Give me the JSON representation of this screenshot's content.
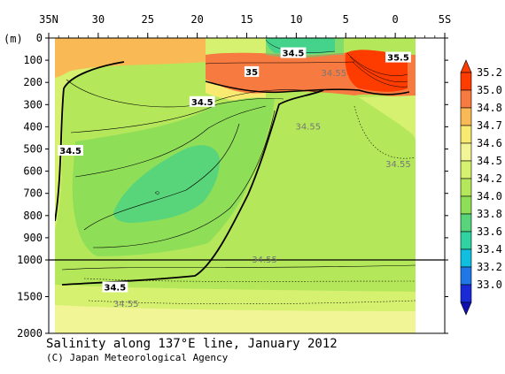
{
  "chart_data": {
    "type": "contour",
    "title": "Salinity along 137°E line, January 2012",
    "credit": "(C) Japan Meteorological Agency",
    "y_unit": "(m)",
    "x_axis": {
      "range": [
        35,
        -5
      ],
      "tick_labels": [
        {
          "value": 35,
          "label": "35N"
        },
        {
          "value": 30,
          "label": "30"
        },
        {
          "value": 25,
          "label": "25"
        },
        {
          "value": 20,
          "label": "20"
        },
        {
          "value": 15,
          "label": "15"
        },
        {
          "value": 10,
          "label": "10"
        },
        {
          "value": 5,
          "label": "5"
        },
        {
          "value": 0,
          "label": "0"
        },
        {
          "value": -5,
          "label": "5S"
        }
      ]
    },
    "y_axis": {
      "upper_range": [
        0,
        1000
      ],
      "lower_range": [
        1000,
        2000
      ],
      "tick_labels": [
        {
          "value": 0,
          "label": "0"
        },
        {
          "value": 100,
          "label": "100"
        },
        {
          "value": 200,
          "label": "200"
        },
        {
          "value": 300,
          "label": "300"
        },
        {
          "value": 400,
          "label": "400"
        },
        {
          "value": 500,
          "label": "500"
        },
        {
          "value": 600,
          "label": "600"
        },
        {
          "value": 700,
          "label": "700"
        },
        {
          "value": 800,
          "label": "800"
        },
        {
          "value": 900,
          "label": "900"
        },
        {
          "value": 1000,
          "label": "1000"
        },
        {
          "value": 1500,
          "label": "1500"
        },
        {
          "value": 2000,
          "label": "2000"
        }
      ]
    },
    "colorbar": {
      "levels": [
        {
          "value": "35.2",
          "color": "#ff3c00"
        },
        {
          "value": "35.0",
          "color": "#f77a40"
        },
        {
          "value": "34.8",
          "color": "#f9b955"
        },
        {
          "value": "34.7",
          "color": "#f8ea70"
        },
        {
          "value": "34.6",
          "color": "#f2f595"
        },
        {
          "value": "34.5",
          "color": "#d6f070"
        },
        {
          "value": "34.2",
          "color": "#b4e85a"
        },
        {
          "value": "34.0",
          "color": "#8fde58"
        },
        {
          "value": "33.8",
          "color": "#58d47a"
        },
        {
          "value": "33.6",
          "color": "#2fd2a0"
        },
        {
          "value": "33.4",
          "color": "#10bfe0"
        },
        {
          "value": "33.2",
          "color": "#1f78e6"
        },
        {
          "value": "33.0",
          "color": "#1a2ad6"
        }
      ],
      "bottom_color": "#1010b0"
    },
    "contour_labels": [
      {
        "text": "34.5",
        "lon": 10.3,
        "depth": 70,
        "style": "bold"
      },
      {
        "text": "35.5",
        "lon": -0.3,
        "depth": 90,
        "style": "bold"
      },
      {
        "text": "35",
        "lon": 14.5,
        "depth": 155,
        "style": "bold"
      },
      {
        "text": "34.55",
        "lon": 6.2,
        "depth": 160,
        "style": "gray"
      },
      {
        "text": "34.5",
        "lon": 19.5,
        "depth": 290,
        "style": "bold"
      },
      {
        "text": "34.55",
        "lon": 8.8,
        "depth": 400,
        "style": "gray"
      },
      {
        "text": "34.5",
        "lon": 32.8,
        "depth": 510,
        "style": "bold"
      },
      {
        "text": "34.55",
        "lon": -0.3,
        "depth": 570,
        "style": "gray"
      },
      {
        "text": "34.55",
        "lon": 13.2,
        "depth": 1000,
        "style": "gray"
      },
      {
        "text": "34.5",
        "lon": 28.3,
        "depth": 1380,
        "style": "bold"
      },
      {
        "text": "34.55",
        "lon": 27.2,
        "depth": 1600,
        "style": "gray"
      }
    ]
  }
}
